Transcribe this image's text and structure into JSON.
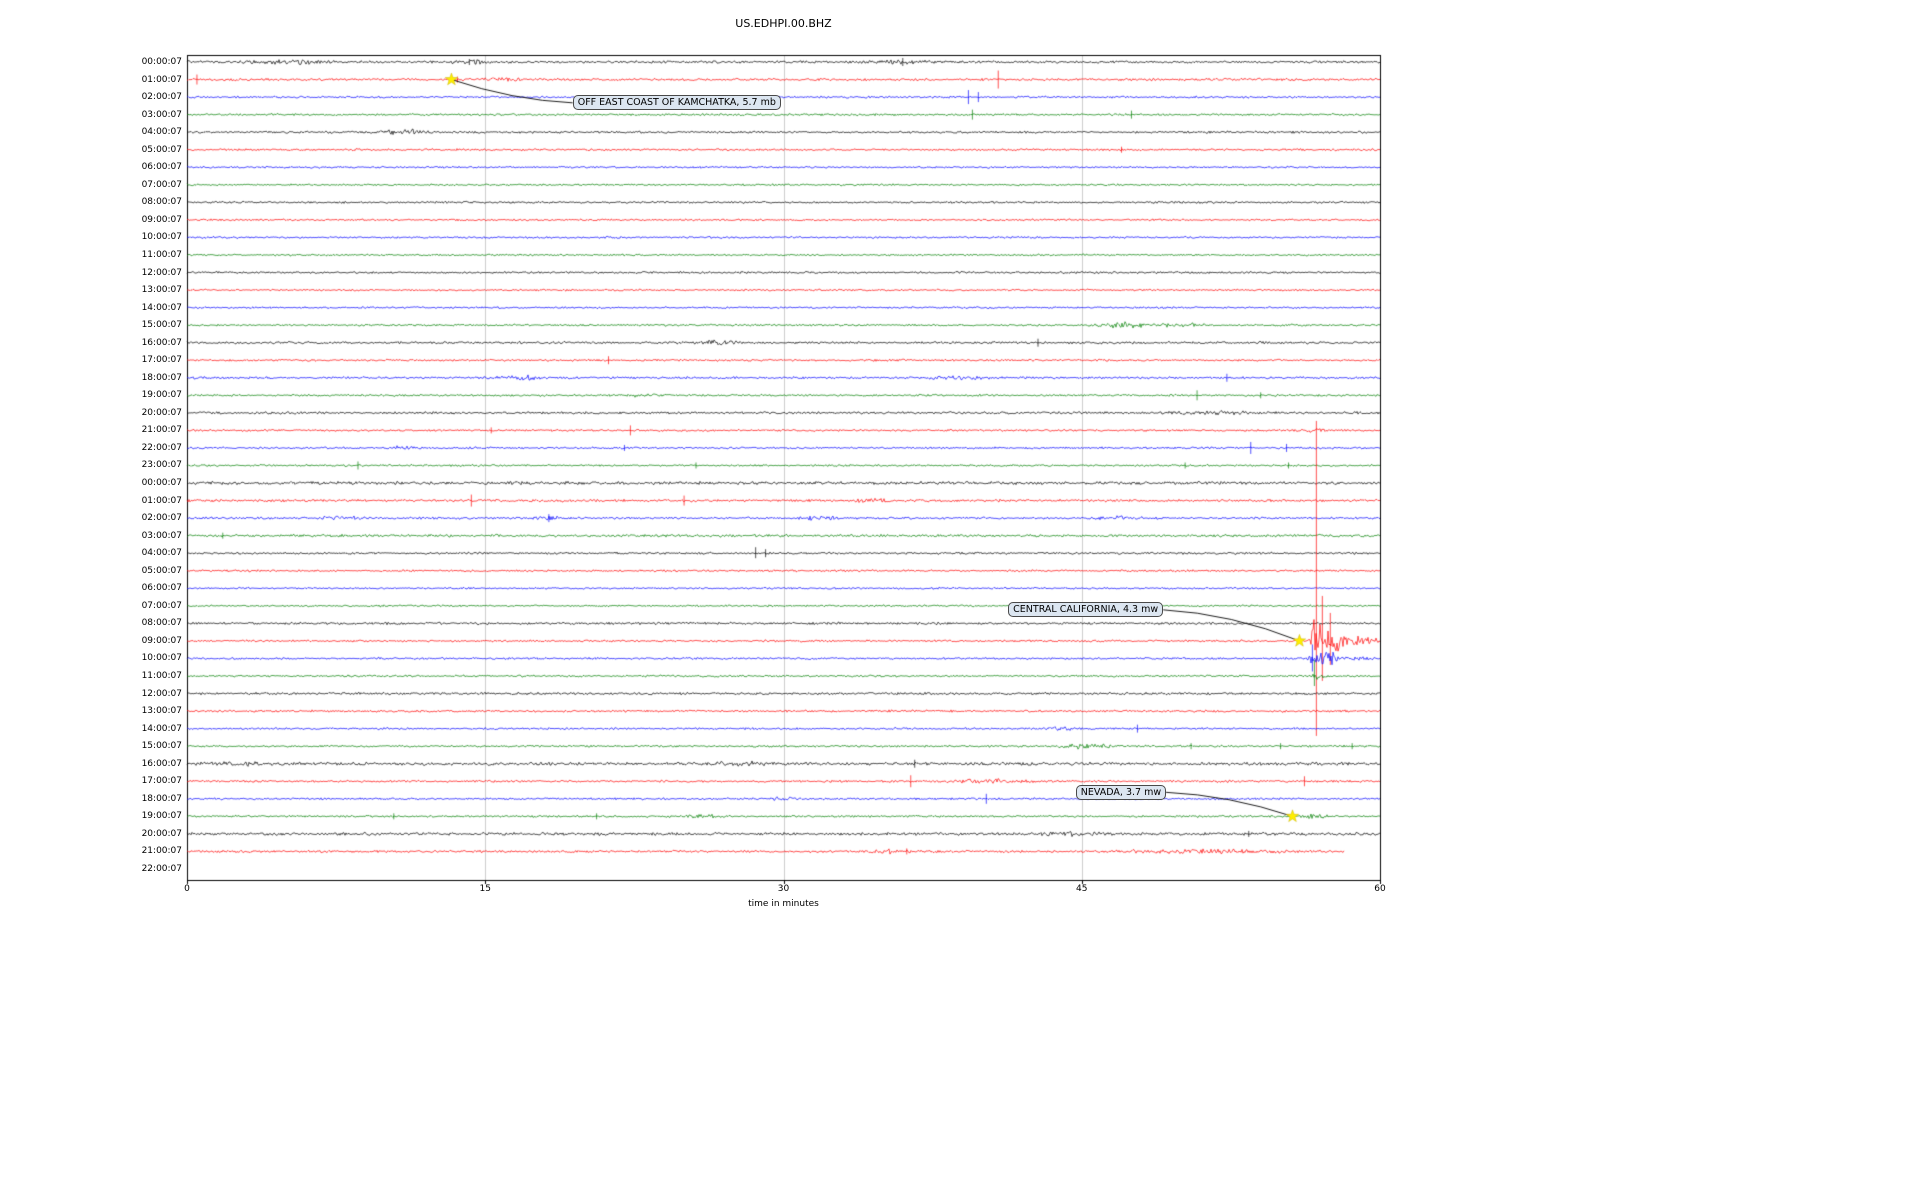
{
  "chart_data": {
    "type": "line",
    "subtype": "seismogram_dayplot",
    "title": "US.EDHPI.00.BHZ",
    "xlabel": "time in minutes",
    "xlim": [
      0,
      60
    ],
    "x_ticks": [
      0,
      15,
      30,
      45,
      60
    ],
    "grid": "vertical-light",
    "trace_color_cycle": [
      "black",
      "red",
      "blue",
      "green"
    ],
    "palette": {
      "black": "#000000",
      "red": "#ff0000",
      "blue": "#0000ff",
      "green": "#008000",
      "star": "#ffee00",
      "grid": "#cccccc",
      "frame": "#000000"
    },
    "rows": [
      {
        "label": "00:00:07",
        "color": "black",
        "amp": 1.4,
        "bursts": [
          [
            2.5,
            8,
            1.5
          ],
          [
            13,
            15.5,
            1.8
          ],
          [
            33.5,
            38,
            1.2
          ]
        ],
        "spikes": [
          [
            14.2,
            3,
            3
          ],
          [
            36,
            4,
            4
          ]
        ]
      },
      {
        "label": "01:00:07",
        "color": "red",
        "amp": 1.4,
        "bursts": [
          [
            13.3,
            17,
            1.5
          ]
        ],
        "spikes": [
          [
            0.5,
            5,
            5
          ],
          [
            13.6,
            3,
            3
          ],
          [
            40.8,
            9,
            9
          ]
        ]
      },
      {
        "label": "02:00:07",
        "color": "blue",
        "amp": 1.2,
        "bursts": [],
        "spikes": [
          [
            39.3,
            7,
            7
          ],
          [
            39.8,
            5,
            5
          ]
        ]
      },
      {
        "label": "03:00:07",
        "color": "green",
        "amp": 1.2,
        "bursts": [],
        "spikes": [
          [
            39.5,
            5,
            5
          ],
          [
            47.5,
            4,
            4
          ]
        ]
      },
      {
        "label": "04:00:07",
        "color": "black",
        "amp": 1.3,
        "bursts": [
          [
            9.5,
            12.5,
            2.2
          ]
        ],
        "spikes": []
      },
      {
        "label": "05:00:07",
        "color": "red",
        "amp": 1.2,
        "bursts": [],
        "spikes": [
          [
            47,
            3,
            3
          ]
        ]
      },
      {
        "label": "06:00:07",
        "color": "blue",
        "amp": 1.1,
        "bursts": [],
        "spikes": []
      },
      {
        "label": "07:00:07",
        "color": "green",
        "amp": 1.1,
        "bursts": [],
        "spikes": []
      },
      {
        "label": "08:00:07",
        "color": "black",
        "amp": 1.2,
        "bursts": [],
        "spikes": []
      },
      {
        "label": "09:00:07",
        "color": "red",
        "amp": 1.1,
        "bursts": [],
        "spikes": []
      },
      {
        "label": "10:00:07",
        "color": "blue",
        "amp": 1.1,
        "bursts": [],
        "spikes": []
      },
      {
        "label": "11:00:07",
        "color": "green",
        "amp": 1.1,
        "bursts": [],
        "spikes": []
      },
      {
        "label": "12:00:07",
        "color": "black",
        "amp": 1.2,
        "bursts": [],
        "spikes": []
      },
      {
        "label": "13:00:07",
        "color": "red",
        "amp": 1.1,
        "bursts": [],
        "spikes": []
      },
      {
        "label": "14:00:07",
        "color": "blue",
        "amp": 1.1,
        "bursts": [],
        "spikes": []
      },
      {
        "label": "15:00:07",
        "color": "green",
        "amp": 1.2,
        "bursts": [
          [
            45.5,
            48.5,
            2.6
          ],
          [
            48.5,
            51.5,
            1.6
          ]
        ],
        "spikes": []
      },
      {
        "label": "16:00:07",
        "color": "black",
        "amp": 1.4,
        "bursts": [
          [
            24.5,
            29,
            1.8
          ]
        ],
        "spikes": [
          [
            42.8,
            4,
            4
          ]
        ]
      },
      {
        "label": "17:00:07",
        "color": "red",
        "amp": 1.2,
        "bursts": [],
        "spikes": [
          [
            21.2,
            4,
            4
          ]
        ]
      },
      {
        "label": "18:00:07",
        "color": "blue",
        "amp": 1.3,
        "bursts": [
          [
            15,
            18.5,
            1.9
          ],
          [
            37,
            40.5,
            1.5
          ]
        ],
        "spikes": [
          [
            52.3,
            4,
            4
          ]
        ]
      },
      {
        "label": "19:00:07",
        "color": "green",
        "amp": 1.2,
        "bursts": [
          [
            22,
            24,
            1.3
          ]
        ],
        "spikes": [
          [
            50.8,
            5,
            5
          ],
          [
            54,
            3,
            3
          ]
        ]
      },
      {
        "label": "20:00:07",
        "color": "black",
        "amp": 1.4,
        "bursts": [
          [
            48.5,
            54,
            1.7
          ]
        ],
        "spikes": []
      },
      {
        "label": "21:00:07",
        "color": "red",
        "amp": 1.2,
        "bursts": [
          [
            55.5,
            57.5,
            1.5
          ]
        ],
        "spikes": [
          [
            15.3,
            3,
            3
          ],
          [
            22.3,
            5,
            5
          ]
        ]
      },
      {
        "label": "22:00:07",
        "color": "blue",
        "amp": 1.2,
        "bursts": [
          [
            10,
            12,
            1.4
          ]
        ],
        "spikes": [
          [
            22,
            3,
            3
          ],
          [
            53.5,
            6,
            6
          ],
          [
            55.3,
            4,
            4
          ]
        ]
      },
      {
        "label": "23:00:07",
        "color": "green",
        "amp": 1.2,
        "bursts": [],
        "spikes": [
          [
            8.6,
            4,
            4
          ],
          [
            25.6,
            3,
            3
          ],
          [
            50.2,
            3,
            3
          ],
          [
            55.4,
            3,
            3
          ]
        ]
      },
      {
        "label": "00:00:07",
        "color": "black",
        "amp": 1.8,
        "bursts": [],
        "spikes": []
      },
      {
        "label": "01:00:07",
        "color": "red",
        "amp": 1.5,
        "bursts": [
          [
            33,
            36,
            1.3
          ]
        ],
        "spikes": [
          [
            14.3,
            6,
            6
          ],
          [
            25,
            5,
            5
          ]
        ]
      },
      {
        "label": "02:00:07",
        "color": "blue",
        "amp": 1.3,
        "bursts": [
          [
            6.5,
            9,
            1.7
          ],
          [
            17.5,
            19,
            2.0
          ],
          [
            30.5,
            33,
            1.6
          ],
          [
            45.5,
            48.5,
            1.6
          ]
        ],
        "spikes": [
          [
            18.2,
            4,
            4
          ]
        ]
      },
      {
        "label": "03:00:07",
        "color": "green",
        "amp": 1.5,
        "bursts": [],
        "spikes": [
          [
            1.8,
            3,
            3
          ]
        ]
      },
      {
        "label": "04:00:07",
        "color": "black",
        "amp": 1.3,
        "bursts": [],
        "spikes": [
          [
            28.6,
            6,
            5
          ],
          [
            29.1,
            4,
            4
          ]
        ]
      },
      {
        "label": "05:00:07",
        "color": "red",
        "amp": 1.2,
        "bursts": [],
        "spikes": []
      },
      {
        "label": "06:00:07",
        "color": "blue",
        "amp": 1.1,
        "bursts": [],
        "spikes": []
      },
      {
        "label": "07:00:07",
        "color": "green",
        "amp": 1.1,
        "bursts": [],
        "spikes": []
      },
      {
        "label": "08:00:07",
        "color": "black",
        "amp": 1.4,
        "bursts": [],
        "spikes": []
      },
      {
        "label": "09:00:07",
        "color": "red",
        "amp": 1.2,
        "bursts": [
          [
            56.4,
            60,
            26,
            1
          ]
        ],
        "spikes": [
          [
            56.8,
            220,
            95
          ],
          [
            57.1,
            45,
            40
          ],
          [
            57.5,
            28,
            24
          ]
        ]
      },
      {
        "label": "10:00:07",
        "color": "blue",
        "amp": 1.2,
        "bursts": [
          [
            56.3,
            58,
            9
          ],
          [
            58,
            60,
            1.5
          ]
        ],
        "spikes": [
          [
            56.6,
            14,
            13
          ]
        ]
      },
      {
        "label": "11:00:07",
        "color": "green",
        "amp": 1.2,
        "bursts": [
          [
            56.4,
            57.6,
            3
          ]
        ],
        "spikes": [
          [
            56.7,
            16,
            10
          ]
        ]
      },
      {
        "label": "12:00:07",
        "color": "black",
        "amp": 1.4,
        "bursts": [],
        "spikes": []
      },
      {
        "label": "13:00:07",
        "color": "red",
        "amp": 1.3,
        "bursts": [],
        "spikes": []
      },
      {
        "label": "14:00:07",
        "color": "blue",
        "amp": 1.2,
        "bursts": [
          [
            43,
            45,
            1.3
          ]
        ],
        "spikes": [
          [
            47.8,
            4,
            4
          ]
        ]
      },
      {
        "label": "15:00:07",
        "color": "green",
        "amp": 1.2,
        "bursts": [
          [
            43.5,
            47,
            2.2
          ]
        ],
        "spikes": [
          [
            50.5,
            3,
            3
          ],
          [
            55,
            3,
            3
          ],
          [
            58.6,
            3,
            3
          ]
        ]
      },
      {
        "label": "16:00:07",
        "color": "black",
        "amp": 1.8,
        "bursts": [
          [
            0,
            5,
            1.3
          ],
          [
            26,
            30,
            1.3
          ]
        ],
        "spikes": [
          [
            36.6,
            4,
            4
          ]
        ]
      },
      {
        "label": "17:00:07",
        "color": "red",
        "amp": 1.3,
        "bursts": [
          [
            37.5,
            43,
            1.7
          ]
        ],
        "spikes": [
          [
            36.4,
            6,
            6
          ],
          [
            56.2,
            5,
            5
          ]
        ]
      },
      {
        "label": "18:00:07",
        "color": "blue",
        "amp": 1.2,
        "bursts": [
          [
            29,
            31,
            1.3
          ]
        ],
        "spikes": [
          [
            40.2,
            5,
            5
          ]
        ]
      },
      {
        "label": "19:00:07",
        "color": "green",
        "amp": 1.2,
        "bursts": [
          [
            25,
            27,
            1.3
          ],
          [
            55.6,
            57.5,
            1.8
          ]
        ],
        "spikes": [
          [
            10.4,
            3,
            3
          ],
          [
            20.6,
            3,
            3
          ]
        ]
      },
      {
        "label": "20:00:07",
        "color": "black",
        "amp": 1.6,
        "bursts": [
          [
            42,
            47,
            1.5
          ]
        ],
        "spikes": [
          [
            53.4,
            3,
            3
          ]
        ]
      },
      {
        "label": "21:00:07",
        "color": "red",
        "amp": 1.4,
        "end": 58.2,
        "bursts": [
          [
            34,
            36.5,
            1.4
          ],
          [
            46,
            58,
            1.4
          ]
        ],
        "spikes": [
          [
            36.2,
            3,
            3
          ]
        ]
      },
      {
        "label": "22:00:07",
        "color": "blue",
        "trace": false,
        "amp": 0,
        "bursts": [],
        "spikes": []
      }
    ],
    "annotations": [
      {
        "text": "OFF EAST COAST OF KAMCHATKA, 5.7 mb",
        "star_row": 1,
        "star_minute": 13.3,
        "box_minute": 19.4,
        "box_row": 2.3
      },
      {
        "text": "CENTRAL CALIFORNIA, 4.3 mw",
        "star_row": 33,
        "star_minute": 55.95,
        "box_minute": 41.3,
        "box_row": 31.2
      },
      {
        "text": "NEVADA, 3.7 mw",
        "star_row": 43,
        "star_minute": 55.6,
        "box_minute": 44.7,
        "box_row": 41.6
      }
    ]
  }
}
